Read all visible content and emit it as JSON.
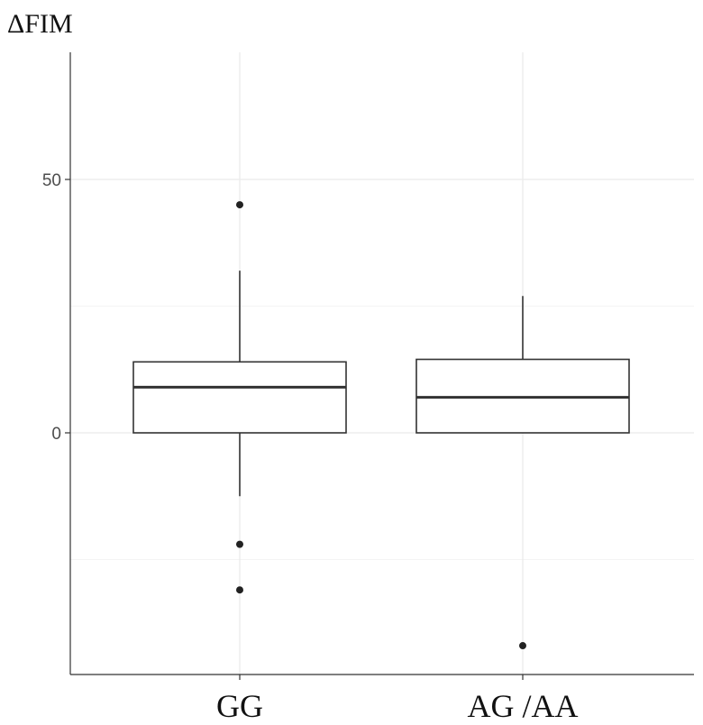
{
  "chart_data": {
    "type": "boxplot",
    "title": "",
    "ylabel": "ΔFIM",
    "xlabel": "",
    "categories": [
      "GG",
      "AG /AA"
    ],
    "ylim": [
      -48,
      75
    ],
    "yticks": [
      0,
      50
    ],
    "grid": true,
    "boxes": [
      {
        "category": "GG",
        "whisker_low": -12.5,
        "q1": 0,
        "median": 9,
        "q3": 14,
        "whisker_high": 32,
        "outliers": [
          45,
          -22,
          -31
        ]
      },
      {
        "category": "AG /AA",
        "whisker_low": 0,
        "q1": 0,
        "median": 7,
        "q3": 14.5,
        "whisker_high": 27,
        "outliers": [
          -42
        ]
      }
    ],
    "colors": {
      "box_stroke": "#333333",
      "grid": "#ebebeb",
      "axis": "#333333",
      "point": "#222222"
    }
  }
}
